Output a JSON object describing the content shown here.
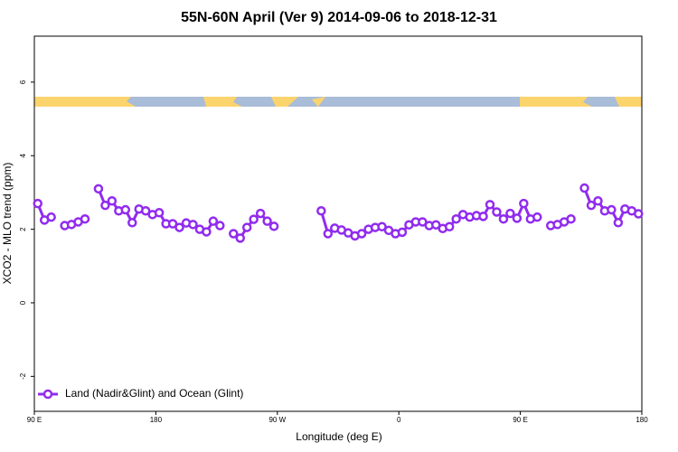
{
  "chart_data": {
    "type": "line",
    "title": "55N-60N April (Ver 9)   2014-09-06 to 2018-12-31",
    "x_label": "Longitude (deg E)",
    "y_label": "XCO2 - MLO trend (ppm)",
    "xlim": [
      90,
      540
    ],
    "ylim": [
      -2.95,
      7.25
    ],
    "xticks": [
      {
        "value": 90,
        "label": "90 E"
      },
      {
        "value": 180,
        "label": "180"
      },
      {
        "value": 270,
        "label": "90 W"
      },
      {
        "value": 360,
        "label": "0"
      },
      {
        "value": 450,
        "label": "90 E"
      },
      {
        "value": 540,
        "label": "180"
      }
    ],
    "yticks": [
      -2,
      0,
      2,
      4,
      6
    ],
    "legend": "bottom-left",
    "x": [
      92.5,
      97.5,
      102.5,
      107.5,
      112.5,
      117.5,
      122.5,
      127.5,
      132.5,
      137.5,
      142.5,
      147.5,
      152.5,
      157.5,
      162.5,
      167.5,
      172.5,
      177.5,
      182.5,
      187.5,
      192.5,
      197.5,
      202.5,
      207.5,
      212.5,
      217.5,
      222.5,
      227.5,
      232.5,
      237.5,
      242.5,
      247.5,
      252.5,
      257.5,
      262.5,
      267.5,
      272.5,
      277.5,
      282.5,
      287.5,
      292.5,
      297.5,
      302.5,
      307.5,
      312.5,
      317.5,
      322.5,
      327.5,
      332.5,
      337.5,
      342.5,
      347.5,
      352.5,
      357.5,
      362.5,
      367.5,
      372.5,
      377.5,
      382.5,
      387.5,
      392.5,
      397.5,
      402.5,
      407.5,
      412.5,
      417.5,
      422.5,
      427.5,
      432.5,
      437.5,
      442.5,
      447.5,
      452.5,
      457.5,
      462.5,
      467.5,
      472.5,
      477.5,
      482.5,
      487.5,
      492.5,
      497.5,
      502.5,
      507.5,
      512.5,
      517.5,
      522.5,
      527.5,
      532.5,
      537.5
    ],
    "series": [
      {
        "name": "Land (Nadir&Glint) and Ocean (Glint)",
        "color": "#912cee",
        "values": [
          2.7,
          2.25,
          2.33,
          null,
          2.1,
          2.13,
          2.2,
          2.28,
          null,
          3.1,
          2.65,
          2.77,
          2.5,
          2.53,
          2.18,
          2.55,
          2.5,
          2.4,
          2.45,
          2.15,
          2.15,
          2.05,
          2.17,
          2.13,
          2.0,
          1.93,
          2.22,
          2.1,
          null,
          1.88,
          1.76,
          2.05,
          2.27,
          2.43,
          2.22,
          2.08,
          null,
          null,
          null,
          null,
          null,
          null,
          2.5,
          1.88,
          2.03,
          1.98,
          1.9,
          1.82,
          1.88,
          2.0,
          2.05,
          2.07,
          1.97,
          1.88,
          1.92,
          2.12,
          2.2,
          2.2,
          2.1,
          2.12,
          2.02,
          2.07,
          2.28,
          2.4,
          2.33,
          2.37,
          2.35,
          2.67,
          2.47,
          2.28,
          2.43,
          2.3,
          2.7,
          2.28,
          2.33,
          null,
          2.1,
          2.13,
          2.2,
          2.28,
          null,
          3.12,
          2.65,
          2.77,
          2.5,
          2.53,
          2.18,
          2.55,
          2.5,
          2.42
        ]
      }
    ]
  }
}
